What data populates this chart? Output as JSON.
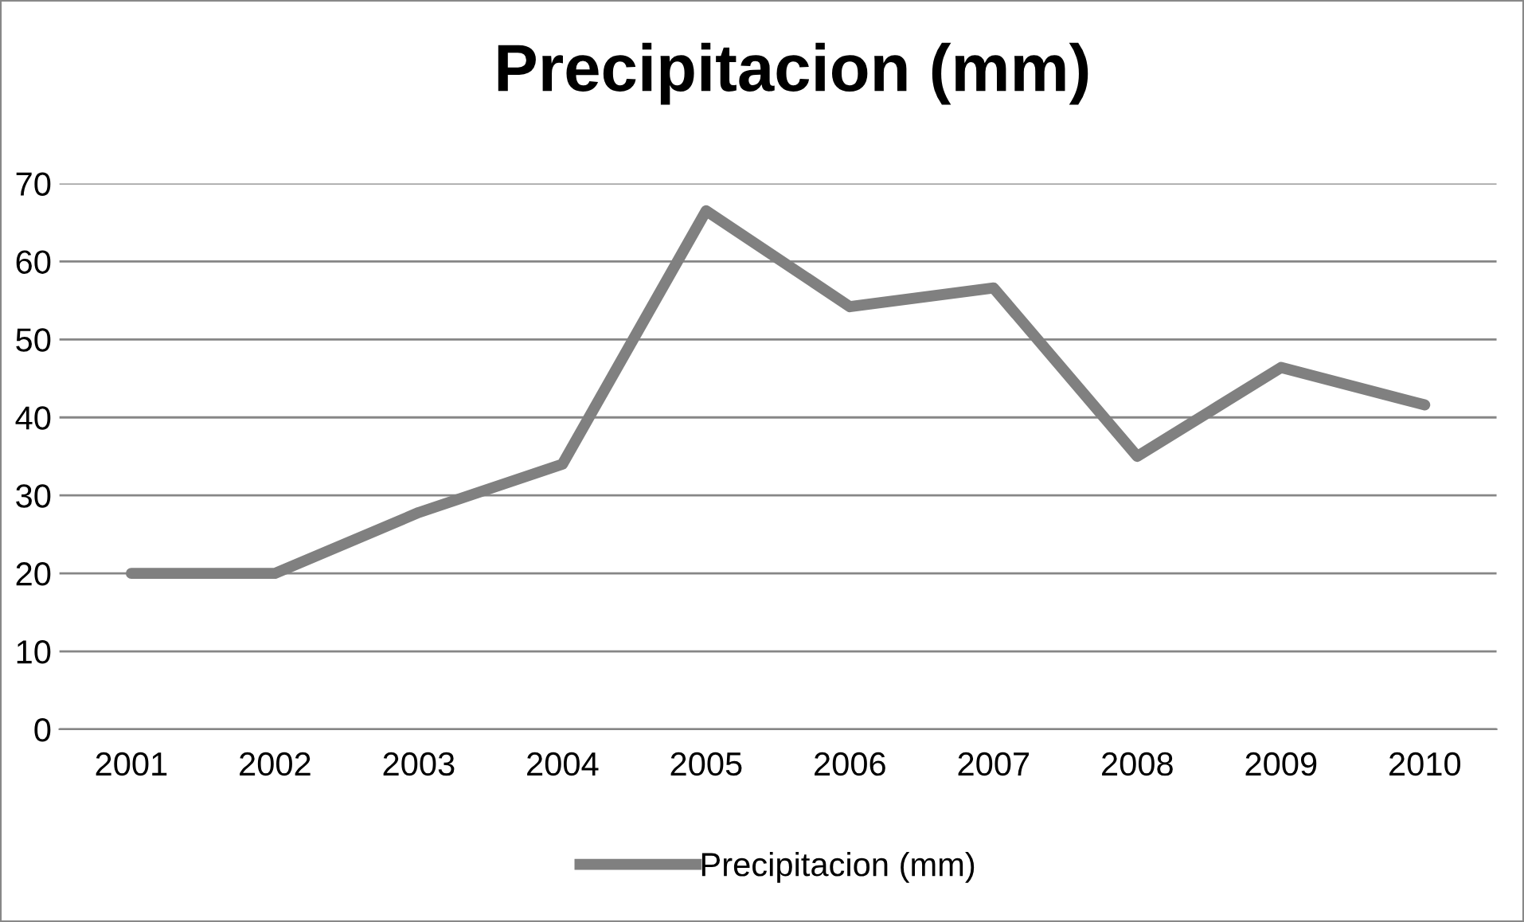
{
  "chart_data": {
    "type": "line",
    "title": "Precipitacion (mm)",
    "categories": [
      "2001",
      "2002",
      "2003",
      "2004",
      "2005",
      "2006",
      "2007",
      "2008",
      "2009",
      "2010"
    ],
    "series": [
      {
        "name": "Precipitacion (mm)",
        "color": "#808080",
        "values": [
          20,
          20,
          27.8,
          34,
          66.5,
          54.2,
          56.6,
          35,
          46.4,
          41.6
        ]
      }
    ],
    "ylim": [
      0,
      70
    ],
    "yticks": [
      0,
      10,
      20,
      30,
      40,
      50,
      60,
      70
    ],
    "grid": "y",
    "legend": "bottom",
    "marker": "none",
    "line_style": "solid"
  }
}
